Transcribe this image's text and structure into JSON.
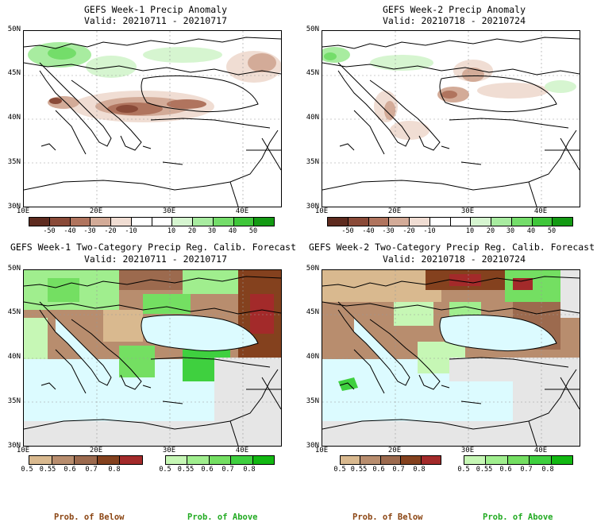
{
  "panels": [
    {
      "title": "GEFS Week-1 Precip Anomaly",
      "valid": "Valid: 20210711 - 20210717"
    },
    {
      "title": "GEFS Week-2 Precip Anomaly",
      "valid": "Valid: 20210718 - 20210724"
    },
    {
      "title": "GEFS Week-1 Two-Category Precip Reg. Calib. Forecast",
      "valid": "Valid: 20210711 - 20210717"
    },
    {
      "title": "GEFS Week-2 Two-Category Precip Reg. Calib. Forecast",
      "valid": "Valid: 20210718 - 20210724"
    }
  ],
  "lat_labels": [
    "50N",
    "45N",
    "40N",
    "35N",
    "30N"
  ],
  "lon_labels": [
    "10E",
    "20E",
    "30E",
    "40E"
  ],
  "anomaly_colorbar": {
    "colors": [
      "#5e2b1f",
      "#8a4a38",
      "#b0745e",
      "#d3ab98",
      "#f0ddd3",
      "#ffffff",
      "#ffffff",
      "#d6f5d0",
      "#a8eca0",
      "#74dd6a",
      "#3fc63a",
      "#139a13"
    ],
    "labels": [
      "-50",
      "-40",
      "-30",
      "-20",
      "-10",
      "10",
      "20",
      "30",
      "40",
      "50"
    ]
  },
  "prob_below_colorbar": {
    "colors": [
      "#d9b98f",
      "#b88d6e",
      "#9c6a4e",
      "#84411e",
      "#a32a2a"
    ],
    "labels": [
      "0.5",
      "0.55",
      "0.6",
      "0.7",
      "0.8"
    ]
  },
  "prob_above_colorbar": {
    "colors": [
      "#c6f7b5",
      "#a0ee8e",
      "#74df62",
      "#3fd03f",
      "#12b812"
    ],
    "labels": [
      "0.5",
      "0.55",
      "0.6",
      "0.7",
      "0.8"
    ]
  },
  "legend_titles": {
    "below": "Prob. of Below",
    "above": "Prob. of Above"
  },
  "colors": {
    "below_title": "#8b4513",
    "above_title": "#22aa22",
    "sea": "#dcfbff",
    "nodata": "#e6e6e6"
  }
}
